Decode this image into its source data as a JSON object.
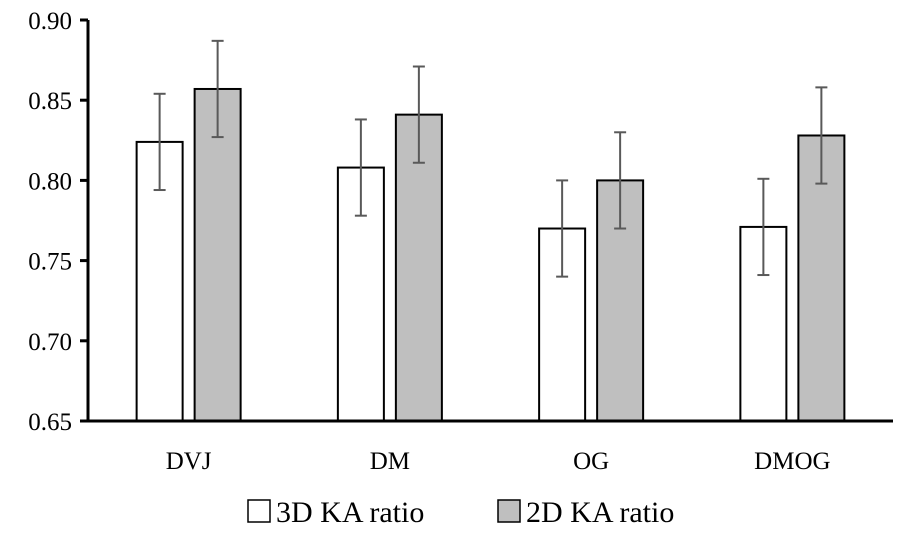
{
  "chart_data": {
    "type": "bar",
    "categories": [
      "DVJ",
      "DM",
      "OG",
      "DMOG"
    ],
    "series": [
      {
        "name": "3D KA ratio",
        "values": [
          0.824,
          0.808,
          0.77,
          0.771
        ],
        "errors": [
          0.03,
          0.03,
          0.03,
          0.03
        ],
        "color": "#ffffff"
      },
      {
        "name": "2D KA ratio",
        "values": [
          0.857,
          0.841,
          0.8,
          0.828
        ],
        "errors": [
          0.03,
          0.03,
          0.03,
          0.03
        ],
        "color": "#bfbfbf"
      }
    ],
    "ylim": [
      0.65,
      0.9
    ],
    "yticks": [
      "0.65",
      "0.70",
      "0.75",
      "0.80",
      "0.85",
      "0.90"
    ],
    "grid": false,
    "legend": "bottom",
    "title": "",
    "xlabel": "",
    "ylabel": ""
  }
}
